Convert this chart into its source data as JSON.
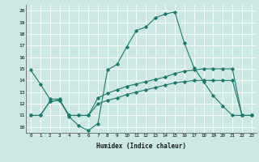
{
  "xlabel": "Humidex (Indice chaleur)",
  "xlim": [
    -0.5,
    23.5
  ],
  "ylim": [
    9.5,
    20.5
  ],
  "xtick_labels": [
    "0",
    "1",
    "2",
    "3",
    "4",
    "5",
    "6",
    "7",
    "8",
    "9",
    "10",
    "11",
    "12",
    "13",
    "14",
    "15",
    "16",
    "17",
    "18",
    "19",
    "20",
    "21",
    "22",
    "23"
  ],
  "ytick_labels": [
    "10",
    "11",
    "12",
    "13",
    "14",
    "15",
    "16",
    "17",
    "18",
    "19",
    "20"
  ],
  "background_color": "#cde8e4",
  "grid_color": "#ffffff",
  "line_color": "#1a7a6e",
  "lines": [
    {
      "x": [
        0,
        1,
        2,
        3,
        4,
        5,
        6,
        7,
        8,
        9,
        10,
        11,
        12,
        13,
        14,
        15,
        16,
        17,
        18,
        19,
        20,
        21,
        22,
        23
      ],
      "y": [
        14.9,
        13.7,
        12.4,
        12.4,
        10.9,
        10.1,
        9.7,
        10.3,
        14.9,
        15.4,
        16.9,
        18.3,
        18.6,
        19.4,
        19.7,
        19.9,
        17.2,
        15.1,
        13.9,
        12.7,
        11.8,
        11.0,
        11.0,
        11.0
      ]
    },
    {
      "x": [
        0,
        1,
        2,
        3,
        4,
        5,
        6,
        7,
        8,
        9,
        10,
        11,
        12,
        13,
        14,
        15,
        16,
        17,
        18,
        19,
        20,
        21,
        22,
        23
      ],
      "y": [
        11.0,
        11.0,
        12.2,
        12.3,
        11.0,
        11.0,
        11.0,
        12.5,
        12.9,
        13.2,
        13.5,
        13.7,
        13.9,
        14.1,
        14.3,
        14.6,
        14.8,
        14.9,
        15.0,
        15.0,
        15.0,
        15.0,
        11.0,
        11.0
      ]
    },
    {
      "x": [
        0,
        1,
        2,
        3,
        4,
        5,
        6,
        7,
        8,
        9,
        10,
        11,
        12,
        13,
        14,
        15,
        16,
        17,
        18,
        19,
        20,
        21,
        22,
        23
      ],
      "y": [
        11.0,
        11.0,
        12.2,
        12.3,
        11.0,
        11.0,
        11.0,
        12.0,
        12.3,
        12.5,
        12.8,
        13.0,
        13.2,
        13.4,
        13.6,
        13.8,
        13.9,
        14.0,
        14.0,
        14.0,
        14.0,
        14.0,
        11.0,
        11.0
      ]
    }
  ]
}
